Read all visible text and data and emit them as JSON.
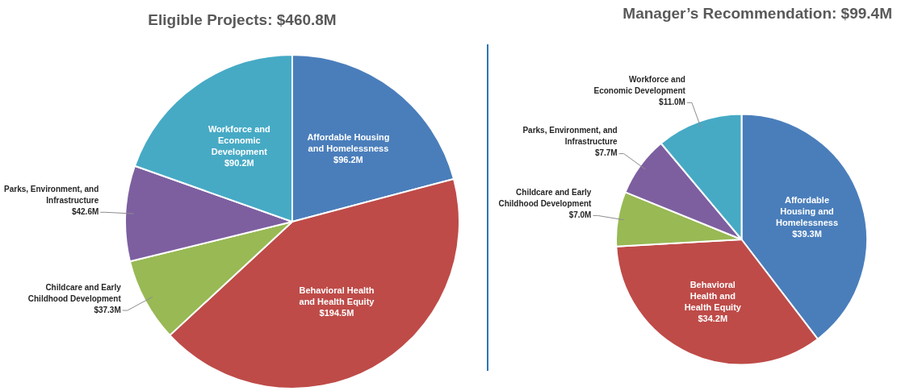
{
  "chart_data": [
    {
      "type": "pie",
      "title": "Eligible Projects:  $460.8M",
      "categories": [
        "Affordable Housing and Homelessness",
        "Behavioral Health and Health Equity",
        "Childcare and Early Childhood Development",
        "Parks, Environment, and Infrastructure",
        "Workforce and Economic Development"
      ],
      "values": [
        96.2,
        194.5,
        37.3,
        42.6,
        90.2
      ],
      "value_labels": [
        "$96.2M",
        "$194.5M",
        "$37.3M",
        "$42.6M",
        "$90.2M"
      ],
      "colors": [
        "#4a7ebb",
        "#be4b48",
        "#98b954",
        "#7d5fa0",
        "#46aac5"
      ],
      "legend": false
    },
    {
      "type": "pie",
      "title": "Manager’s Recommendation:  $99.4M",
      "categories": [
        "Affordable Housing and Homelessness",
        "Behavioral Health and Health Equity",
        "Childcare and Early Childhood Development",
        "Parks, Environment, and Infrastructure",
        "Workforce and Economic Development"
      ],
      "values": [
        39.3,
        34.2,
        7.0,
        7.7,
        11.0
      ],
      "value_labels": [
        "$39.3M",
        "$34.2M",
        "$7.0M",
        "$7.7M",
        "$11.0M"
      ],
      "colors": [
        "#4a7ebb",
        "#be4b48",
        "#98b954",
        "#7d5fa0",
        "#46aac5"
      ],
      "legend": false
    }
  ]
}
